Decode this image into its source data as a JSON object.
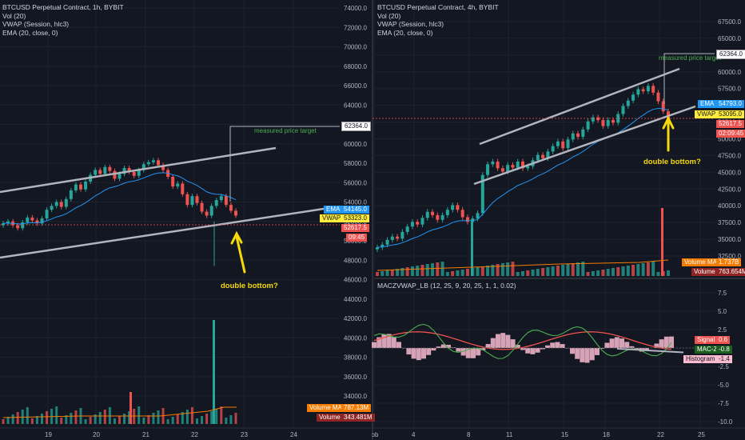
{
  "left": {
    "legend": [
      "BTCUSD Perpetual Contract, 1h, BYBIT",
      "Vol (20)",
      "VWAP (Session, hlc3)",
      "EMA (20, close, 0)"
    ],
    "price_ticks": [
      "74000.0",
      "72000.0",
      "70000.0",
      "68000.0",
      "66000.0",
      "64000.0",
      "62000.0",
      "60000.0",
      "58000.0",
      "56000.0",
      "54000.0",
      "52000.0",
      "50000.0",
      "48000.0",
      "46000.0",
      "44000.0",
      "42000.0",
      "40000.0",
      "38000.0",
      "36000.0",
      "34000.0"
    ],
    "date_ticks": [
      "19",
      "20",
      "21",
      "22",
      "23",
      "24"
    ],
    "tags": {
      "target": "62364.0",
      "ema_label": "EMA",
      "ema": "54145.0",
      "vwap_label": "VWAP",
      "vwap": "53323.0",
      "price": "52617.5",
      "timer": "09:45",
      "volma_label": "Volume MA",
      "volma": "787.13M",
      "vol_label": "Volume",
      "vol": "343.481M"
    },
    "annotations": {
      "target": "measured price target",
      "double": "double bottom?"
    }
  },
  "right": {
    "legend": [
      "BTCUSD Perpetual Contract, 4h, BYBIT",
      "Vol (20)",
      "VWAP (Session, hlc3)",
      "EMA (20, close, 0)"
    ],
    "price_ticks": [
      "67500.0",
      "65000.0",
      "62500.0",
      "60000.0",
      "57500.0",
      "55000.0",
      "52500.0",
      "50000.0",
      "47500.0",
      "45000.0",
      "42500.0",
      "40000.0",
      "37500.0",
      "35000.0",
      "32500.0"
    ],
    "date_ticks": [
      "ɔb",
      "4",
      "8",
      "11",
      "15",
      "18",
      "22",
      "25"
    ],
    "tags": {
      "target": "62364.0",
      "ema_label": "EMA",
      "ema": "54793.0",
      "vwap_label": "VWAP",
      "vwap": "53095.0",
      "price": "52617.5",
      "timer": "02:09:45",
      "volma_label": "Volume MA",
      "volma": "1.737B",
      "vol_label": "Volume",
      "vol": "763.654M"
    },
    "annotations": {
      "target": "measured price target",
      "double": "double bottom?"
    },
    "osc": {
      "legend": "MACZVWAP_LB (12, 25, 9, 20, 25, 1, 1, 0.02)",
      "ticks": [
        "7.5",
        "5.0",
        "2.5",
        "0.0",
        "-2.5",
        "-5.0",
        "-7.5",
        "-10.0"
      ],
      "tags": {
        "signal_label": "Signal",
        "signal": "0.6",
        "macz_label": "MAC-Z",
        "macz": "-0.8",
        "hist_label": "Histogram",
        "hist": "-1.4"
      }
    }
  },
  "colors": {
    "bg": "#131722",
    "up": "#26a69a",
    "down": "#ef5350",
    "ema": "#2196f3",
    "vwap": "#ffeb3b",
    "channel": "#b2b5be",
    "target": "#4caf50",
    "arrow": "#f5d90a",
    "grid": "#1e222d"
  },
  "chart_data": [
    {
      "type": "candlestick",
      "title": "BTCUSD Perpetual Contract, 1h, BYBIT",
      "x_ticks": [
        "19",
        "20",
        "21",
        "22",
        "23",
        "24"
      ],
      "ylim": [
        33000,
        75000
      ],
      "series_desc": "Approx. hourly closes",
      "closes": [
        51800,
        52000,
        51600,
        51300,
        51900,
        52400,
        52100,
        51800,
        52300,
        53200,
        53600,
        54000,
        53500,
        54300,
        55200,
        55800,
        55300,
        56100,
        56800,
        57300,
        56900,
        57600,
        57200,
        56400,
        56900,
        57500,
        57100,
        56700,
        57300,
        57900,
        58100,
        58300,
        57800,
        57300,
        56600,
        55600,
        55900,
        54800,
        53700,
        54600,
        53900,
        53000,
        52600,
        53600,
        54200,
        54600,
        53700,
        53100,
        52600
      ]
    },
    {
      "type": "candlestick",
      "title": "BTCUSD Perpetual Contract, 4h, BYBIT",
      "x_ticks": [
        "4",
        "8",
        "11",
        "15",
        "18",
        "22",
        "25"
      ],
      "ylim": [
        30000,
        70000
      ],
      "series_desc": "Approx. 4h closes",
      "closes": [
        33800,
        34200,
        34900,
        35400,
        35100,
        36100,
        36900,
        37600,
        37200,
        38200,
        39100,
        38600,
        37900,
        38600,
        39400,
        40100,
        39400,
        38300,
        37600,
        38100,
        38900,
        44600,
        46200,
        46600,
        45600,
        45100,
        46100,
        45700,
        46600,
        45600,
        45900,
        46800,
        47600,
        47100,
        48100,
        48900,
        49600,
        48600,
        49900,
        50800,
        50300,
        51400,
        52600,
        53200,
        52800,
        51900,
        52800,
        52400,
        53700,
        54900,
        55700,
        56600,
        57400,
        57100,
        57900,
        56900,
        55600,
        54100,
        52600
      ]
    },
    {
      "type": "line",
      "title": "MACZVWAP_LB (12, 25, 9, 20, 25, 1, 1, 0.02)",
      "ylim": [
        -10,
        8
      ],
      "series": [
        {
          "name": "Signal",
          "last": 0.6
        },
        {
          "name": "MAC-Z",
          "last": -0.8
        },
        {
          "name": "Histogram",
          "last": -1.4
        }
      ]
    }
  ]
}
